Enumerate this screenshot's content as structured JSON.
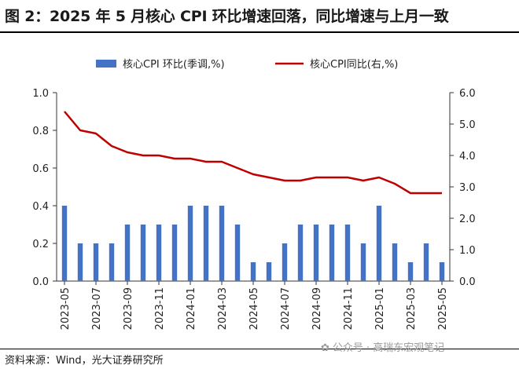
{
  "title": "图 2：2025 年 5 月核心 CPI 环比增速回落，同比增速与上月一致",
  "source": "资料来源：Wind，光大证券研究所",
  "watermark": "公众号 · 高瑞东宏观笔记",
  "colors": {
    "bar": "#4472C4",
    "line": "#C00000"
  },
  "chart_data": {
    "type": "bar+line",
    "months": [
      "2023-05",
      "2023-06",
      "2023-07",
      "2023-08",
      "2023-09",
      "2023-10",
      "2023-11",
      "2023-12",
      "2024-01",
      "2024-02",
      "2024-03",
      "2024-04",
      "2024-05",
      "2024-06",
      "2024-07",
      "2024-08",
      "2024-09",
      "2024-10",
      "2024-11",
      "2024-12",
      "2025-01",
      "2025-02",
      "2025-03",
      "2025-04",
      "2025-05"
    ],
    "x_tick_labels": [
      "2023-05",
      "2023-07",
      "2023-09",
      "2023-11",
      "2024-01",
      "2024-03",
      "2024-05",
      "2024-07",
      "2024-09",
      "2024-11",
      "2025-01",
      "2025-03",
      "2025-05"
    ],
    "left_axis": {
      "ylim": [
        0.0,
        1.0
      ],
      "ticks": [
        "0.0",
        "0.2",
        "0.4",
        "0.6",
        "0.8",
        "1.0"
      ]
    },
    "right_axis": {
      "ylim": [
        0.0,
        6.0
      ],
      "ticks": [
        "0.0",
        "1.0",
        "2.0",
        "3.0",
        "4.0",
        "5.0",
        "6.0"
      ]
    },
    "legend_position": "top",
    "series": [
      {
        "name": "核心CPI 环比(季调,%)",
        "type": "bar",
        "axis": "left",
        "values": [
          0.4,
          0.2,
          0.2,
          0.2,
          0.3,
          0.3,
          0.3,
          0.3,
          0.4,
          0.4,
          0.4,
          0.3,
          0.1,
          0.1,
          0.2,
          0.3,
          0.3,
          0.3,
          0.3,
          0.2,
          0.4,
          0.2,
          0.1,
          0.2,
          0.1
        ]
      },
      {
        "name": "核心CPI同比(右,%)",
        "type": "line",
        "axis": "right",
        "x": [
          "2023-05",
          "2023-06",
          "2023-07",
          "2023-08",
          "2023-09",
          "2023-10",
          "2023-11",
          "2023-12",
          "2024-01",
          "2024-02",
          "2024-03",
          "2024-04",
          "2024-05",
          "2024-06",
          "2024-07",
          "2024-08",
          "2024-09",
          "2024-10",
          "2024-11",
          "2024-12",
          "2025-01",
          "2025-02",
          "2025-03",
          "2025-04",
          "2025-05"
        ],
        "values": [
          5.4,
          4.8,
          4.7,
          4.3,
          4.1,
          4.0,
          4.0,
          3.9,
          3.9,
          3.8,
          3.8,
          3.6,
          3.4,
          3.3,
          3.2,
          3.2,
          3.3,
          3.3,
          3.3,
          3.2,
          3.3,
          3.1,
          2.8,
          2.8,
          2.8
        ]
      }
    ]
  }
}
